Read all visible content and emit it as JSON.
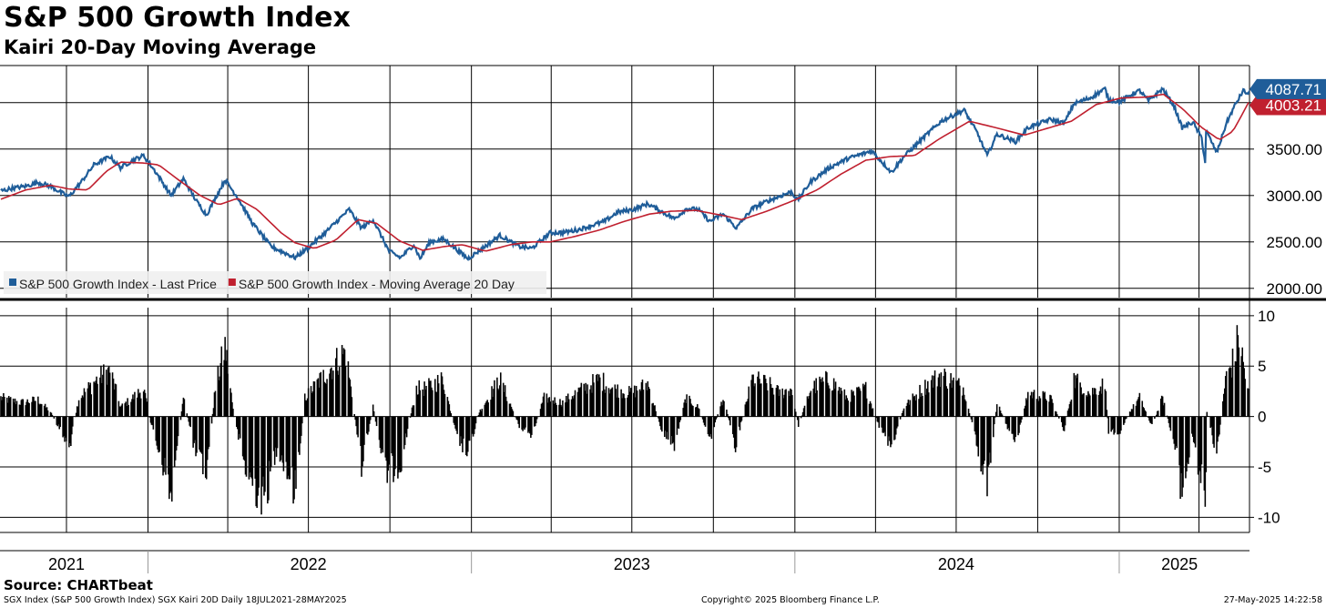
{
  "header": {
    "title": "S&P 500 Growth Index",
    "subtitle": "Kairi 20-Day Moving Average"
  },
  "footer": {
    "source": "Source: CHARTbeat",
    "left_note": "SGX Index (S&P 500 Growth Index) SGX Kairi 20D  Daily 18JUL2021-28MAY2025",
    "center_note": "Copyright© 2025 Bloomberg Finance L.P.",
    "right_note": "27-May-2025 14:22:58"
  },
  "colors": {
    "price": "#1f5d99",
    "moving_average": "#c0202f",
    "histogram": "#000000",
    "grid": "#000000"
  },
  "chart_data": [
    {
      "type": "line",
      "x_axis": "date",
      "x_start": "2021-07-18",
      "x_end": "2025-05-28",
      "year_labels": [
        {
          "label": "2021",
          "date": "2021-10-01"
        },
        {
          "label": "2022",
          "date": "2022-07-01"
        },
        {
          "label": "2023",
          "date": "2023-07-01"
        },
        {
          "label": "2024",
          "date": "2024-07-01"
        },
        {
          "label": "2025",
          "date": "2025-03-10"
        }
      ],
      "year_boundaries": [
        "2022-01-01",
        "2023-01-01",
        "2024-01-01",
        "2025-01-01"
      ],
      "ylim": [
        1900,
        4400
      ],
      "yticks": [
        2000,
        2500,
        3000,
        3500,
        4000
      ],
      "ytick_labels": [
        "2000.00",
        "2500.00",
        "3000.00",
        "3500.00",
        ""
      ],
      "grid": true,
      "legend_position": "bottom-left",
      "series": [
        {
          "name": "S&P 500 Growth Index - Last Price",
          "color": "#1f5d99",
          "last_value_label": "4087.71",
          "points": [
            [
              "2021-07-19",
              3050
            ],
            [
              "2021-08-02",
              3080
            ],
            [
              "2021-08-16",
              3100
            ],
            [
              "2021-08-30",
              3140
            ],
            [
              "2021-09-13",
              3100
            ],
            [
              "2021-09-27",
              3020
            ],
            [
              "2021-10-04",
              2990
            ],
            [
              "2021-10-18",
              3150
            ],
            [
              "2021-11-01",
              3330
            ],
            [
              "2021-11-19",
              3420
            ],
            [
              "2021-12-01",
              3300
            ],
            [
              "2021-12-15",
              3380
            ],
            [
              "2021-12-27",
              3430
            ],
            [
              "2022-01-10",
              3250
            ],
            [
              "2022-01-27",
              3000
            ],
            [
              "2022-02-10",
              3180
            ],
            [
              "2022-02-24",
              2950
            ],
            [
              "2022-03-08",
              2790
            ],
            [
              "2022-03-29",
              3170
            ],
            [
              "2022-04-12",
              2980
            ],
            [
              "2022-04-29",
              2700
            ],
            [
              "2022-05-20",
              2450
            ],
            [
              "2022-06-16",
              2330
            ],
            [
              "2022-07-01",
              2440
            ],
            [
              "2022-07-20",
              2600
            ],
            [
              "2022-08-16",
              2850
            ],
            [
              "2022-08-30",
              2650
            ],
            [
              "2022-09-12",
              2740
            ],
            [
              "2022-09-30",
              2400
            ],
            [
              "2022-10-13",
              2330
            ],
            [
              "2022-10-28",
              2470
            ],
            [
              "2022-11-04",
              2320
            ],
            [
              "2022-11-15",
              2500
            ],
            [
              "2022-12-01",
              2530
            ],
            [
              "2022-12-15",
              2420
            ],
            [
              "2022-12-28",
              2320
            ],
            [
              "2023-01-12",
              2420
            ],
            [
              "2023-02-02",
              2570
            ],
            [
              "2023-02-24",
              2450
            ],
            [
              "2023-03-10",
              2430
            ],
            [
              "2023-03-31",
              2600
            ],
            [
              "2023-04-14",
              2600
            ],
            [
              "2023-05-01",
              2630
            ],
            [
              "2023-05-31",
              2720
            ],
            [
              "2023-06-15",
              2820
            ],
            [
              "2023-07-03",
              2850
            ],
            [
              "2023-07-19",
              2910
            ],
            [
              "2023-08-03",
              2830
            ],
            [
              "2023-08-18",
              2750
            ],
            [
              "2023-09-01",
              2860
            ],
            [
              "2023-09-14",
              2850
            ],
            [
              "2023-09-27",
              2720
            ],
            [
              "2023-10-12",
              2800
            ],
            [
              "2023-10-27",
              2650
            ],
            [
              "2023-11-14",
              2860
            ],
            [
              "2023-12-01",
              2940
            ],
            [
              "2023-12-28",
              3040
            ],
            [
              "2024-01-04",
              2950
            ],
            [
              "2024-01-19",
              3150
            ],
            [
              "2024-02-09",
              3300
            ],
            [
              "2024-03-01",
              3400
            ],
            [
              "2024-03-28",
              3480
            ],
            [
              "2024-04-19",
              3250
            ],
            [
              "2024-05-03",
              3420
            ],
            [
              "2024-05-28",
              3650
            ],
            [
              "2024-06-14",
              3800
            ],
            [
              "2024-07-10",
              3920
            ],
            [
              "2024-07-25",
              3670
            ],
            [
              "2024-08-05",
              3430
            ],
            [
              "2024-08-16",
              3660
            ],
            [
              "2024-09-06",
              3580
            ],
            [
              "2024-09-20",
              3730
            ],
            [
              "2024-10-15",
              3820
            ],
            [
              "2024-10-31",
              3780
            ],
            [
              "2024-11-11",
              3990
            ],
            [
              "2024-11-29",
              4050
            ],
            [
              "2024-12-16",
              4150
            ],
            [
              "2024-12-20",
              4030
            ],
            [
              "2025-01-02",
              4010
            ],
            [
              "2025-01-13",
              4080
            ],
            [
              "2025-01-24",
              4130
            ],
            [
              "2025-02-03",
              4020
            ],
            [
              "2025-02-19",
              4150
            ],
            [
              "2025-03-04",
              3960
            ],
            [
              "2025-03-13",
              3730
            ],
            [
              "2025-03-25",
              3790
            ],
            [
              "2025-04-04",
              3620
            ],
            [
              "2025-04-08",
              3350
            ],
            [
              "2025-04-09",
              3700
            ],
            [
              "2025-04-21",
              3460
            ],
            [
              "2025-05-02",
              3780
            ],
            [
              "2025-05-12",
              3980
            ],
            [
              "2025-05-21",
              4130
            ],
            [
              "2025-05-27",
              4087.71
            ]
          ]
        },
        {
          "name": "S&P 500 Growth Index - Moving Average 20 Day",
          "color": "#c0202f",
          "last_value_label": "4003.21",
          "points": [
            [
              "2021-07-19",
              2960
            ],
            [
              "2021-08-16",
              3060
            ],
            [
              "2021-09-13",
              3110
            ],
            [
              "2021-10-04",
              3070
            ],
            [
              "2021-10-25",
              3060
            ],
            [
              "2021-11-15",
              3260
            ],
            [
              "2021-12-01",
              3360
            ],
            [
              "2021-12-27",
              3350
            ],
            [
              "2022-01-13",
              3330
            ],
            [
              "2022-02-07",
              3150
            ],
            [
              "2022-03-01",
              3000
            ],
            [
              "2022-03-22",
              2900
            ],
            [
              "2022-04-12",
              2970
            ],
            [
              "2022-05-04",
              2850
            ],
            [
              "2022-05-31",
              2600
            ],
            [
              "2022-06-16",
              2490
            ],
            [
              "2022-07-08",
              2430
            ],
            [
              "2022-08-01",
              2520
            ],
            [
              "2022-08-26",
              2740
            ],
            [
              "2022-09-16",
              2700
            ],
            [
              "2022-10-12",
              2510
            ],
            [
              "2022-11-07",
              2410
            ],
            [
              "2022-12-01",
              2450
            ],
            [
              "2022-12-22",
              2470
            ],
            [
              "2023-01-17",
              2400
            ],
            [
              "2023-02-14",
              2470
            ],
            [
              "2023-03-10",
              2500
            ],
            [
              "2023-03-31",
              2500
            ],
            [
              "2023-04-28",
              2560
            ],
            [
              "2023-05-26",
              2630
            ],
            [
              "2023-06-22",
              2720
            ],
            [
              "2023-07-21",
              2800
            ],
            [
              "2023-08-14",
              2830
            ],
            [
              "2023-09-11",
              2840
            ],
            [
              "2023-10-09",
              2790
            ],
            [
              "2023-11-02",
              2740
            ],
            [
              "2023-11-30",
              2830
            ],
            [
              "2023-12-29",
              2940
            ],
            [
              "2024-01-26",
              3060
            ],
            [
              "2024-02-22",
              3230
            ],
            [
              "2024-03-21",
              3380
            ],
            [
              "2024-04-18",
              3420
            ],
            [
              "2024-05-15",
              3430
            ],
            [
              "2024-06-12",
              3610
            ],
            [
              "2024-07-16",
              3800
            ],
            [
              "2024-08-15",
              3730
            ],
            [
              "2024-09-16",
              3650
            ],
            [
              "2024-10-14",
              3730
            ],
            [
              "2024-11-08",
              3800
            ],
            [
              "2024-12-06",
              3980
            ],
            [
              "2025-01-03",
              4050
            ],
            [
              "2025-01-31",
              4060
            ],
            [
              "2025-02-20",
              4090
            ],
            [
              "2025-03-14",
              3930
            ],
            [
              "2025-04-03",
              3740
            ],
            [
              "2025-04-24",
              3600
            ],
            [
              "2025-05-09",
              3690
            ],
            [
              "2025-05-19",
              3860
            ],
            [
              "2025-05-27",
              4003.21
            ]
          ]
        }
      ]
    },
    {
      "type": "bar",
      "name": "SGX Kairi 20D",
      "x_axis": "date",
      "ylim": [
        -11.5,
        10.8
      ],
      "yticks": [
        10,
        5,
        0,
        -5,
        -10
      ],
      "ytick_labels": [
        "10",
        "5",
        "0",
        "-5",
        "-10"
      ],
      "grid": true,
      "keyframes": [
        [
          "2021-07-19",
          2.0
        ],
        [
          "2021-08-10",
          1.5
        ],
        [
          "2021-08-30",
          1.8
        ],
        [
          "2021-09-13",
          0.5
        ],
        [
          "2021-09-27",
          -2.0
        ],
        [
          "2021-10-04",
          -3.5
        ],
        [
          "2021-10-15",
          2.0
        ],
        [
          "2021-11-05",
          4.0
        ],
        [
          "2021-11-19",
          5.0
        ],
        [
          "2021-12-01",
          1.0
        ],
        [
          "2021-12-15",
          2.0
        ],
        [
          "2021-12-27",
          3.0
        ],
        [
          "2022-01-05",
          -1.0
        ],
        [
          "2022-01-21",
          -6.0
        ],
        [
          "2022-01-27",
          -9.0
        ],
        [
          "2022-02-10",
          2.0
        ],
        [
          "2022-02-24",
          -4.0
        ],
        [
          "2022-03-08",
          -6.0
        ],
        [
          "2022-03-18",
          3.0
        ],
        [
          "2022-03-29",
          7.5
        ],
        [
          "2022-04-08",
          0.0
        ],
        [
          "2022-04-22",
          -6.0
        ],
        [
          "2022-05-12",
          -9.0
        ],
        [
          "2022-05-27",
          -3.0
        ],
        [
          "2022-06-16",
          -8.0
        ],
        [
          "2022-06-27",
          2.0
        ],
        [
          "2022-07-15",
          4.0
        ],
        [
          "2022-08-12",
          7.0
        ],
        [
          "2022-08-30",
          -5.0
        ],
        [
          "2022-09-12",
          1.0
        ],
        [
          "2022-09-26",
          -6.0
        ],
        [
          "2022-10-13",
          -5.0
        ],
        [
          "2022-10-31",
          3.0
        ],
        [
          "2022-11-10",
          3.0
        ],
        [
          "2022-11-30",
          4.0
        ],
        [
          "2022-12-15",
          -2.0
        ],
        [
          "2022-12-28",
          -4.0
        ],
        [
          "2023-01-10",
          0.5
        ],
        [
          "2023-02-02",
          4.0
        ],
        [
          "2023-02-24",
          -1.0
        ],
        [
          "2023-03-10",
          -2.0
        ],
        [
          "2023-03-24",
          2.0
        ],
        [
          "2023-04-14",
          1.5
        ],
        [
          "2023-04-28",
          2.5
        ],
        [
          "2023-05-26",
          4.0
        ],
        [
          "2023-06-09",
          3.0
        ],
        [
          "2023-06-30",
          2.5
        ],
        [
          "2023-07-19",
          3.5
        ],
        [
          "2023-08-04",
          -1.5
        ],
        [
          "2023-08-18",
          -3.0
        ],
        [
          "2023-08-31",
          2.0
        ],
        [
          "2023-09-14",
          1.0
        ],
        [
          "2023-09-27",
          -2.5
        ],
        [
          "2023-10-12",
          2.0
        ],
        [
          "2023-10-26",
          -3.0
        ],
        [
          "2023-11-14",
          4.0
        ],
        [
          "2023-12-01",
          3.5
        ],
        [
          "2023-12-15",
          2.5
        ],
        [
          "2023-12-28",
          3.0
        ],
        [
          "2024-01-05",
          -1.0
        ],
        [
          "2024-01-19",
          3.0
        ],
        [
          "2024-02-09",
          4.0
        ],
        [
          "2024-02-29",
          2.0
        ],
        [
          "2024-03-21",
          3.0
        ],
        [
          "2024-04-05",
          -1.0
        ],
        [
          "2024-04-19",
          -3.5
        ],
        [
          "2024-05-03",
          1.0
        ],
        [
          "2024-05-24",
          3.0
        ],
        [
          "2024-06-14",
          4.5
        ],
        [
          "2024-07-10",
          3.0
        ],
        [
          "2024-07-24",
          -3.0
        ],
        [
          "2024-08-05",
          -7.5
        ],
        [
          "2024-08-16",
          1.5
        ],
        [
          "2024-09-06",
          -3.0
        ],
        [
          "2024-09-20",
          2.5
        ],
        [
          "2024-10-15",
          2.0
        ],
        [
          "2024-10-31",
          -1.5
        ],
        [
          "2024-11-11",
          4.0
        ],
        [
          "2024-11-29",
          2.5
        ],
        [
          "2024-12-16",
          3.5
        ],
        [
          "2024-12-20",
          -1.5
        ],
        [
          "2025-01-02",
          -1.5
        ],
        [
          "2025-01-13",
          0.5
        ],
        [
          "2025-01-24",
          2.0
        ],
        [
          "2025-02-07",
          -1.0
        ],
        [
          "2025-02-19",
          2.0
        ],
        [
          "2025-03-04",
          -3.0
        ],
        [
          "2025-03-13",
          -8.0
        ],
        [
          "2025-03-25",
          -2.0
        ],
        [
          "2025-04-04",
          -7.0
        ],
        [
          "2025-04-08",
          -10.5
        ],
        [
          "2025-04-10",
          0.5
        ],
        [
          "2025-04-21",
          -4.0
        ],
        [
          "2025-05-01",
          4.0
        ],
        [
          "2025-05-12",
          6.5
        ],
        [
          "2025-05-16",
          9.0
        ],
        [
          "2025-05-22",
          5.0
        ],
        [
          "2025-05-27",
          2.5
        ]
      ]
    }
  ]
}
